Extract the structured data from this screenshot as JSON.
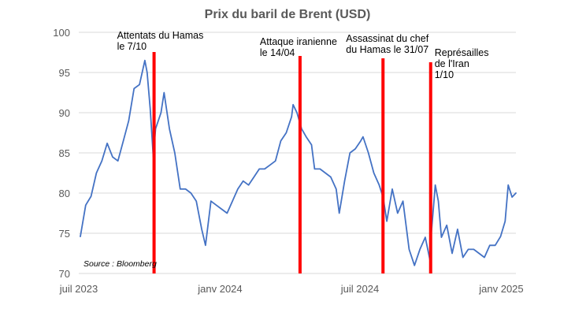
{
  "chart_data": {
    "type": "line",
    "title": "Prix du baril de Brent (USD)",
    "source": "Source : Bloomberg",
    "xlabel": "",
    "ylabel": "",
    "ylim": [
      70,
      100
    ],
    "yticks": [
      70,
      75,
      80,
      85,
      90,
      95,
      100
    ],
    "xlim": [
      "2023-07-01",
      "2025-01-20"
    ],
    "xticks": [
      {
        "date": "2023-07-01",
        "label": "juil 2023"
      },
      {
        "date": "2024-01-01",
        "label": "janv 2024"
      },
      {
        "date": "2024-07-01",
        "label": "juil 2024"
      },
      {
        "date": "2025-01-01",
        "label": "janv 2025"
      }
    ],
    "grid": true,
    "line_color": "#4472c4",
    "event_color": "#ff0000",
    "series": [
      {
        "x": [
          "2023-07-03",
          "2023-07-10",
          "2023-07-17",
          "2023-07-24",
          "2023-07-31",
          "2023-08-07",
          "2023-08-14",
          "2023-08-21",
          "2023-08-28",
          "2023-09-04",
          "2023-09-11",
          "2023-09-18",
          "2023-09-25",
          "2023-09-28",
          "2023-10-02",
          "2023-10-06",
          "2023-10-09",
          "2023-10-16",
          "2023-10-20",
          "2023-10-27",
          "2023-11-03",
          "2023-11-10",
          "2023-11-17",
          "2023-11-24",
          "2023-12-01",
          "2023-12-08",
          "2023-12-13",
          "2023-12-20",
          "2023-12-27",
          "2024-01-03",
          "2024-01-10",
          "2024-01-17",
          "2024-01-24",
          "2024-01-31",
          "2024-02-07",
          "2024-02-14",
          "2024-02-21",
          "2024-02-28",
          "2024-03-06",
          "2024-03-13",
          "2024-03-20",
          "2024-03-27",
          "2024-04-03",
          "2024-04-05",
          "2024-04-10",
          "2024-04-16",
          "2024-04-22",
          "2024-04-29",
          "2024-05-03",
          "2024-05-10",
          "2024-05-17",
          "2024-05-24",
          "2024-05-31",
          "2024-06-04",
          "2024-06-11",
          "2024-06-18",
          "2024-06-25",
          "2024-07-02",
          "2024-07-05",
          "2024-07-12",
          "2024-07-19",
          "2024-07-26",
          "2024-07-31",
          "2024-08-05",
          "2024-08-12",
          "2024-08-19",
          "2024-08-26",
          "2024-09-03",
          "2024-09-10",
          "2024-09-17",
          "2024-09-24",
          "2024-09-30",
          "2024-10-01",
          "2024-10-04",
          "2024-10-07",
          "2024-10-11",
          "2024-10-15",
          "2024-10-22",
          "2024-10-29",
          "2024-11-05",
          "2024-11-12",
          "2024-11-19",
          "2024-11-26",
          "2024-12-03",
          "2024-12-10",
          "2024-12-17",
          "2024-12-24",
          "2024-12-31",
          "2025-01-06",
          "2025-01-10",
          "2025-01-15",
          "2025-01-20"
        ],
        "y": [
          74.6,
          78.5,
          79.6,
          82.5,
          84.0,
          86.2,
          84.5,
          84.0,
          86.5,
          89.0,
          93.0,
          93.5,
          96.5,
          95.0,
          90.5,
          84.5,
          88.0,
          90.0,
          92.5,
          88.0,
          85.0,
          80.5,
          80.5,
          80.0,
          79.0,
          75.5,
          73.5,
          79.0,
          78.5,
          78.0,
          77.5,
          79.0,
          80.5,
          81.5,
          81.0,
          82.0,
          83.0,
          83.0,
          83.5,
          84.0,
          86.5,
          87.5,
          89.5,
          91.0,
          90.0,
          88.0,
          87.0,
          86.0,
          83.0,
          83.0,
          82.5,
          82.0,
          80.5,
          77.5,
          81.5,
          85.0,
          85.5,
          86.5,
          87.0,
          85.0,
          82.5,
          81.0,
          79.5,
          76.5,
          80.5,
          77.5,
          79.0,
          73.0,
          71.0,
          73.0,
          74.5,
          71.7,
          74.0,
          77.5,
          81.0,
          79.0,
          74.5,
          76.0,
          72.5,
          75.5,
          72.0,
          73.0,
          73.0,
          72.5,
          72.0,
          73.5,
          73.5,
          74.6,
          76.5,
          81.0,
          79.5,
          80.0
        ]
      }
    ],
    "events": [
      {
        "date": "2023-10-07",
        "label": [
          "Attentats du Hamas",
          "le 7/10"
        ]
      },
      {
        "date": "2024-04-14",
        "label": [
          "Attaque iranienne",
          "le 14/04"
        ]
      },
      {
        "date": "2024-07-31",
        "label": [
          "Assassinat du chef",
          "du Hamas le 31/07"
        ]
      },
      {
        "date": "2024-10-01",
        "label": [
          "Représailles",
          "de l'Iran",
          "1/10"
        ]
      }
    ]
  }
}
